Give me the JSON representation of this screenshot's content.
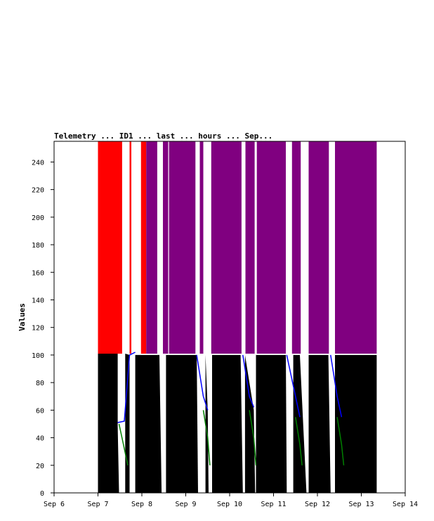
{
  "chart_data": {
    "type": "area",
    "title": "Telemetry ... ID1 ... last ... hours ... Sep...",
    "xlabel": "",
    "ylabel": "Values",
    "x_ticks": [
      "Sep 6",
      "Sep 7",
      "Sep 8",
      "Sep 9",
      "Sep 10",
      "Sep 11",
      "Sep 12",
      "Sep 13",
      "Sep 14"
    ],
    "xlim": [
      6,
      14
    ],
    "ylim": [
      0,
      255
    ],
    "y_ticks": [
      0,
      20,
      40,
      60,
      80,
      100,
      120,
      140,
      160,
      180,
      200,
      220,
      240
    ],
    "grid": false,
    "series": [
      {
        "color": "#000000",
        "segments": [
          [
            [
              7.0,
              101
            ],
            [
              7.45,
              101
            ],
            [
              7.45,
              48
            ],
            [
              7.48,
              0
            ]
          ],
          [
            [
              7.62,
              101
            ],
            [
              7.72,
              100
            ],
            [
              7.72,
              0
            ]
          ],
          [
            [
              7.85,
              100
            ],
            [
              8.4,
              100
            ],
            [
              8.45,
              0
            ]
          ],
          [
            [
              8.55,
              100
            ],
            [
              9.25,
              100
            ],
            [
              9.28,
              0
            ]
          ],
          [
            [
              9.45,
              100
            ],
            [
              9.5,
              60
            ],
            [
              9.52,
              0
            ]
          ],
          [
            [
              9.6,
              100
            ],
            [
              10.25,
              100
            ],
            [
              10.3,
              0
            ]
          ],
          [
            [
              10.35,
              100
            ],
            [
              10.55,
              60
            ],
            [
              10.58,
              0
            ]
          ],
          [
            [
              10.6,
              100
            ],
            [
              11.28,
              100
            ],
            [
              11.3,
              0
            ]
          ],
          [
            [
              11.45,
              100
            ],
            [
              11.6,
              100
            ],
            [
              11.75,
              0
            ]
          ],
          [
            [
              11.8,
              100
            ],
            [
              12.25,
              100
            ],
            [
              12.3,
              0
            ]
          ],
          [
            [
              12.4,
              100
            ],
            [
              13.35,
              100
            ],
            [
              13.35,
              0
            ]
          ]
        ]
      },
      {
        "color": "#ff0000",
        "segments": [
          [
            [
              7.0,
              255
            ],
            [
              7.55,
              255
            ],
            [
              7.55,
              101
            ],
            [
              7.0,
              101
            ]
          ],
          [
            [
              7.72,
              255
            ],
            [
              7.76,
              255
            ],
            [
              7.76,
              101
            ],
            [
              7.72,
              101
            ]
          ],
          [
            [
              7.98,
              255
            ],
            [
              8.1,
              255
            ],
            [
              8.1,
              101
            ],
            [
              7.98,
              101
            ]
          ]
        ]
      },
      {
        "color": "#800080",
        "segments": [
          [
            [
              8.1,
              255
            ],
            [
              8.35,
              255
            ],
            [
              8.35,
              101
            ],
            [
              8.1,
              101
            ]
          ],
          [
            [
              8.48,
              255
            ],
            [
              8.6,
              255
            ],
            [
              8.6,
              101
            ],
            [
              8.48,
              101
            ]
          ],
          [
            [
              8.62,
              255
            ],
            [
              9.22,
              255
            ],
            [
              9.22,
              101
            ],
            [
              8.62,
              101
            ]
          ],
          [
            [
              9.32,
              255
            ],
            [
              9.4,
              255
            ],
            [
              9.4,
              101
            ],
            [
              9.32,
              101
            ]
          ],
          [
            [
              9.58,
              255
            ],
            [
              10.27,
              255
            ],
            [
              10.27,
              101
            ],
            [
              9.58,
              101
            ]
          ],
          [
            [
              10.36,
              255
            ],
            [
              10.57,
              255
            ],
            [
              10.57,
              101
            ],
            [
              10.36,
              101
            ]
          ],
          [
            [
              10.62,
              255
            ],
            [
              11.28,
              255
            ],
            [
              11.28,
              101
            ],
            [
              10.62,
              101
            ]
          ],
          [
            [
              11.42,
              255
            ],
            [
              11.62,
              255
            ],
            [
              11.62,
              101
            ],
            [
              11.42,
              101
            ]
          ],
          [
            [
              11.8,
              255
            ],
            [
              12.26,
              255
            ],
            [
              12.26,
              101
            ],
            [
              11.8,
              101
            ]
          ],
          [
            [
              12.4,
              255
            ],
            [
              13.35,
              255
            ],
            [
              13.35,
              101
            ],
            [
              12.4,
              101
            ]
          ]
        ]
      },
      {
        "color": "#0000ff",
        "lines": [
          [
            [
              7.45,
              51
            ],
            [
              7.6,
              52
            ],
            [
              7.72,
              100
            ],
            [
              7.85,
              102
            ]
          ],
          [
            [
              9.25,
              100
            ],
            [
              9.4,
              70
            ],
            [
              9.5,
              60
            ]
          ],
          [
            [
              10.3,
              100
            ],
            [
              10.45,
              70
            ],
            [
              10.55,
              62
            ]
          ],
          [
            [
              11.3,
              100
            ],
            [
              11.5,
              70
            ],
            [
              11.6,
              55
            ]
          ],
          [
            [
              12.3,
              100
            ],
            [
              12.45,
              70
            ],
            [
              12.55,
              55
            ]
          ]
        ]
      },
      {
        "color": "#008000",
        "lines": [
          [
            [
              7.48,
              50
            ],
            [
              7.58,
              35
            ],
            [
              7.68,
              20
            ]
          ],
          [
            [
              9.4,
              60
            ],
            [
              9.5,
              40
            ],
            [
              9.55,
              20
            ]
          ],
          [
            [
              10.45,
              60
            ],
            [
              10.55,
              40
            ],
            [
              10.6,
              20
            ]
          ],
          [
            [
              11.5,
              55
            ],
            [
              11.6,
              35
            ],
            [
              11.65,
              20
            ]
          ],
          [
            [
              12.45,
              55
            ],
            [
              12.55,
              35
            ],
            [
              12.6,
              20
            ]
          ]
        ]
      }
    ]
  }
}
